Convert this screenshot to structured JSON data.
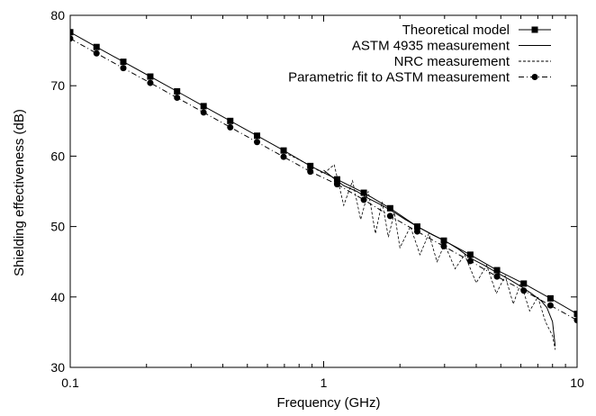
{
  "chart_data": {
    "type": "line",
    "xlabel": "Frequency (GHz)",
    "ylabel": "Shielding effectiveness (dB)",
    "x_scale": "log",
    "xlim": [
      0.1,
      10
    ],
    "ylim": [
      30,
      80
    ],
    "x_ticks": [
      {
        "value": 0.1,
        "label": "0.1"
      },
      {
        "value": 1,
        "label": "1"
      },
      {
        "value": 10,
        "label": "10"
      }
    ],
    "y_ticks": [
      {
        "value": 30,
        "label": "30"
      },
      {
        "value": 40,
        "label": "40"
      },
      {
        "value": 50,
        "label": "50"
      },
      {
        "value": 60,
        "label": "60"
      },
      {
        "value": 70,
        "label": "70"
      },
      {
        "value": 80,
        "label": "80"
      }
    ],
    "grid": false,
    "legend_position": "top-right",
    "series": [
      {
        "name": "Theoretical model",
        "style": "solid-square-markers",
        "color": "#000000",
        "x": [
          0.1,
          0.127,
          0.162,
          0.207,
          0.264,
          0.336,
          0.428,
          0.546,
          0.695,
          0.886,
          1.13,
          1.44,
          1.83,
          2.34,
          2.98,
          3.79,
          4.83,
          6.16,
          7.85,
          10.0
        ],
        "values": [
          77.6,
          75.5,
          73.4,
          71.3,
          69.2,
          67.1,
          65.0,
          62.9,
          60.8,
          58.6,
          56.7,
          54.8,
          52.6,
          50.0,
          48.0,
          46.0,
          43.8,
          41.9,
          39.8,
          37.6
        ]
      },
      {
        "name": "ASTM 4935 measurement",
        "style": "solid",
        "color": "#000000",
        "x": [
          1.0,
          1.1,
          1.2,
          1.35,
          1.5,
          1.7,
          1.9,
          2.1,
          2.4,
          2.7,
          3.0,
          3.4,
          3.8,
          4.3,
          4.8,
          5.4,
          6.0,
          6.6,
          7.2,
          7.6,
          8.0,
          8.2
        ],
        "values": [
          58.0,
          56.8,
          55.8,
          55.0,
          54.0,
          53.0,
          52.0,
          51.0,
          49.8,
          48.8,
          48.0,
          46.8,
          45.5,
          44.5,
          43.5,
          42.5,
          41.5,
          40.5,
          39.5,
          38.5,
          36.5,
          33.0
        ]
      },
      {
        "name": "NRC measurement",
        "style": "dashed",
        "color": "#000000",
        "x": [
          0.7,
          0.8,
          0.9,
          1.0,
          1.1,
          1.2,
          1.3,
          1.4,
          1.5,
          1.6,
          1.7,
          1.8,
          1.9,
          2.0,
          2.2,
          2.4,
          2.6,
          2.8,
          3.0,
          3.3,
          3.6,
          4.0,
          4.4,
          4.8,
          5.2,
          5.6,
          6.0,
          6.5,
          7.0,
          7.5,
          8.0,
          8.2
        ],
        "values": [
          60.5,
          59.5,
          58.5,
          57.5,
          58.8,
          53.0,
          56.5,
          51.0,
          55.0,
          49.0,
          53.5,
          48.5,
          52.0,
          47.0,
          50.0,
          46.0,
          49.0,
          45.0,
          47.5,
          44.0,
          46.0,
          42.0,
          44.5,
          40.5,
          43.0,
          39.0,
          42.0,
          38.0,
          40.0,
          36.5,
          34.5,
          32.5
        ]
      },
      {
        "name": "Parametric fit to ASTM measurement",
        "style": "dash-dot-circle-markers",
        "color": "#000000",
        "x": [
          0.1,
          0.127,
          0.162,
          0.207,
          0.264,
          0.336,
          0.428,
          0.546,
          0.695,
          0.886,
          1.13,
          1.44,
          1.83,
          2.34,
          2.98,
          3.79,
          4.83,
          6.16,
          7.85,
          10.0
        ],
        "values": [
          76.7,
          74.6,
          72.5,
          70.4,
          68.3,
          66.2,
          64.1,
          62.0,
          59.9,
          57.8,
          56.0,
          53.8,
          51.5,
          49.3,
          47.2,
          45.1,
          42.9,
          40.9,
          38.8,
          36.7
        ]
      }
    ]
  }
}
